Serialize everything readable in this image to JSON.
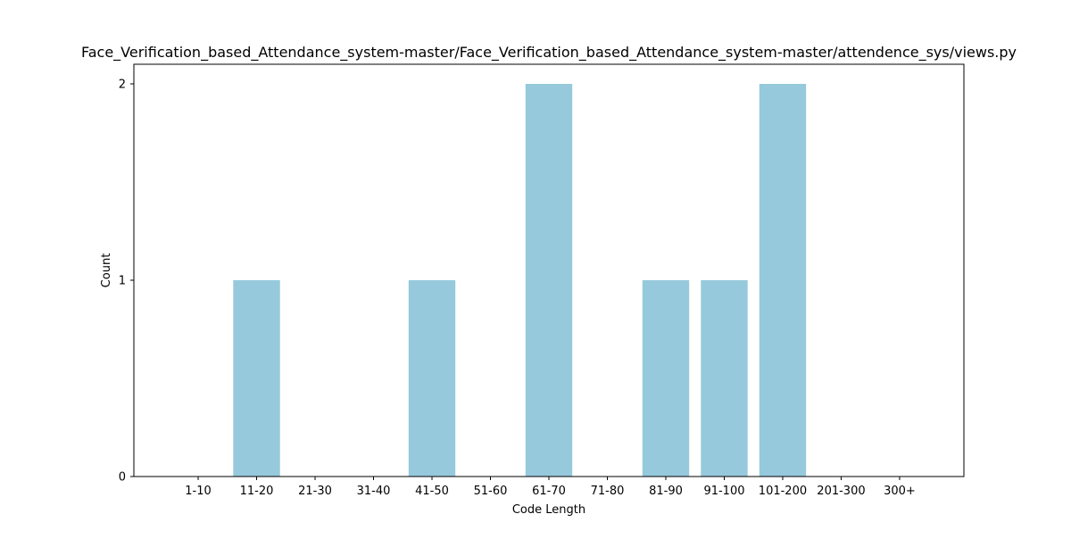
{
  "chart_data": {
    "type": "bar",
    "title": "Face_Verification_based_Attendance_system-master/Face_Verification_based_Attendance_system-master/attendence_sys/views.py",
    "xlabel": "Code Length",
    "ylabel": "Count",
    "categories": [
      "1-10",
      "11-20",
      "21-30",
      "31-40",
      "41-50",
      "51-60",
      "61-70",
      "71-80",
      "81-90",
      "91-100",
      "101-200",
      "201-300",
      "300+"
    ],
    "values": [
      0,
      1,
      0,
      0,
      1,
      0,
      2,
      0,
      1,
      1,
      2,
      0,
      0
    ],
    "ylim": [
      0,
      2.1
    ],
    "yticks": [
      0,
      1,
      2
    ],
    "grid": false,
    "legend": "none",
    "bar_color": "#96c9dc"
  }
}
